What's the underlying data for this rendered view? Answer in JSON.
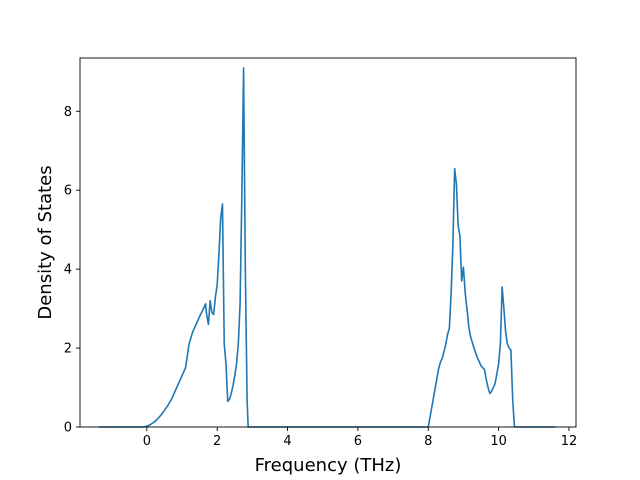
{
  "chart_data": {
    "type": "line",
    "title": "",
    "xlabel": "Frequency (THz)",
    "ylabel": "Density of States",
    "xlim": [
      -1.9,
      12.2
    ],
    "ylim": [
      0,
      9.35
    ],
    "x_ticks": [
      "0",
      "2",
      "4",
      "6",
      "8",
      "10",
      "12"
    ],
    "y_ticks": [
      "0",
      "2",
      "4",
      "6",
      "8"
    ],
    "grid": false,
    "legend": "none",
    "line_color": "#1f77b4",
    "series": [
      {
        "x": [
          -1.35,
          -0.8,
          -0.4,
          -0.1,
          0.0,
          0.1,
          0.2,
          0.3,
          0.4,
          0.5,
          0.6,
          0.7,
          0.8,
          0.9,
          1.0,
          1.1,
          1.15,
          1.2,
          1.25,
          1.3,
          1.4,
          1.5,
          1.6,
          1.67,
          1.7,
          1.75,
          1.8,
          1.85,
          1.9,
          1.95,
          2.0,
          2.05,
          2.1,
          2.15,
          2.2,
          2.25,
          2.3,
          2.35,
          2.4,
          2.45,
          2.5,
          2.55,
          2.6,
          2.65,
          2.7,
          2.75,
          2.8,
          2.85,
          2.88,
          2.93,
          2.97,
          3.0,
          3.1,
          4.0,
          5.0,
          6.0,
          7.0,
          8.0,
          8.15,
          8.2,
          8.25,
          8.3,
          8.35,
          8.4,
          8.5,
          8.55,
          8.6,
          8.65,
          8.7,
          8.75,
          8.8,
          8.85,
          8.9,
          8.95,
          9.0,
          9.05,
          9.08,
          9.12,
          9.15,
          9.2,
          9.3,
          9.4,
          9.5,
          9.6,
          9.65,
          9.7,
          9.75,
          9.8,
          9.9,
          10.0,
          10.05,
          10.1,
          10.15,
          10.2,
          10.25,
          10.3,
          10.35,
          10.4,
          10.45,
          10.5,
          10.55,
          10.6,
          11.0,
          11.6
        ],
        "y": [
          0.0,
          0.0,
          0.0,
          0.0,
          0.02,
          0.06,
          0.12,
          0.2,
          0.3,
          0.42,
          0.55,
          0.7,
          0.9,
          1.1,
          1.3,
          1.5,
          1.8,
          2.1,
          2.25,
          2.4,
          2.6,
          2.8,
          2.98,
          3.12,
          2.85,
          2.6,
          3.2,
          2.9,
          2.85,
          3.3,
          3.6,
          4.4,
          5.3,
          5.65,
          2.1,
          1.6,
          0.65,
          0.7,
          0.85,
          1.05,
          1.3,
          1.6,
          2.1,
          3.1,
          5.8,
          9.1,
          4.0,
          0.7,
          0.0,
          0.0,
          0.0,
          0.0,
          0.0,
          0.0,
          0.0,
          0.0,
          0.0,
          0.0,
          0.75,
          1.0,
          1.25,
          1.5,
          1.65,
          1.75,
          2.1,
          2.35,
          2.5,
          3.4,
          4.6,
          6.55,
          6.15,
          5.1,
          4.85,
          3.7,
          4.05,
          3.4,
          3.15,
          2.85,
          2.55,
          2.3,
          2.0,
          1.75,
          1.55,
          1.45,
          1.2,
          1.0,
          0.85,
          0.9,
          1.1,
          1.6,
          2.1,
          3.55,
          3.0,
          2.4,
          2.1,
          2.0,
          1.95,
          0.7,
          0.0,
          0.0,
          0.0,
          0.0,
          0.0,
          0.0
        ]
      }
    ]
  }
}
